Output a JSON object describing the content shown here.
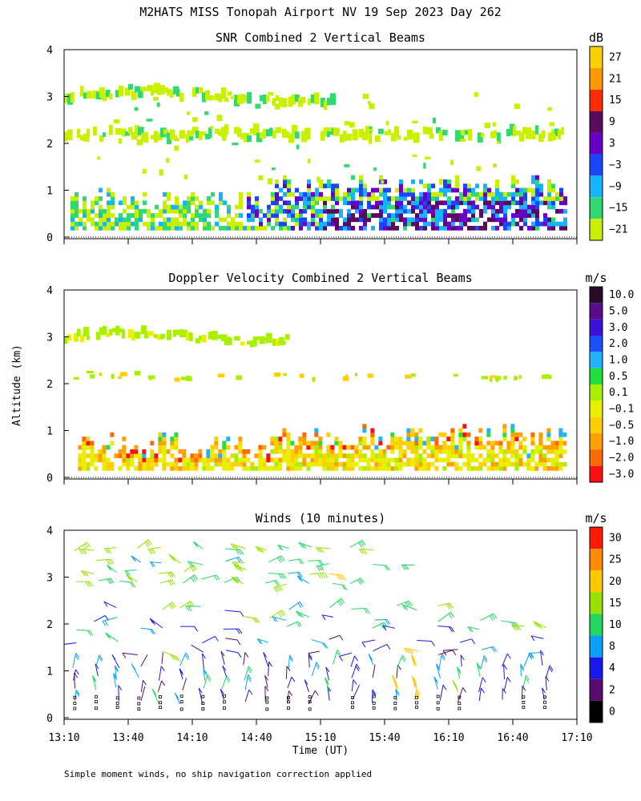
{
  "figure": {
    "title": "M2HATS MISS Tonopah Airport NV  19 Sep 2023 Day 262",
    "ylabel": "Altitude (km)",
    "xlabel": "Time (UT)",
    "footnote": "Simple moment winds, no ship navigation correction applied"
  },
  "chart_data": [
    {
      "type": "heatmap",
      "title": "SNR Combined 2 Vertical Beams",
      "ylabel": "Altitude (km)",
      "ylim": [
        0,
        4
      ],
      "yticks": [
        "0",
        "1",
        "2",
        "3",
        "4"
      ],
      "colorbar_unit": "dB",
      "colorbar": {
        "labels": [
          "27",
          "21",
          "15",
          "9",
          "3",
          "−3",
          "−9",
          "−15",
          "−21"
        ],
        "colors": [
          "#ffd000",
          "#ff9900",
          "#ff2a00",
          "#5a0a5a",
          "#6a00c8",
          "#1a46ff",
          "#14b4ff",
          "#32d870",
          "#c8f000"
        ]
      },
      "features": [
        {
          "name": "elevated layer",
          "altitude_km": 3.0,
          "time_range": [
            "13:10",
            "15:15"
          ],
          "snr_db": -18
        },
        {
          "name": "elevated layer",
          "altitude_km": 2.2,
          "time_range": [
            "13:10",
            "17:05"
          ],
          "snr_db": -20
        },
        {
          "name": "boundary layer",
          "altitude_km_range": [
            0.15,
            1.0
          ],
          "time_range": [
            "13:10",
            "17:05"
          ],
          "snr_db_range": [
            -21,
            6
          ]
        }
      ]
    },
    {
      "type": "heatmap",
      "title": "Doppler Velocity Combined 2 Vertical Beams",
      "ylabel": "Altitude (km)",
      "ylim": [
        0,
        4
      ],
      "yticks": [
        "0",
        "1",
        "2",
        "3",
        "4"
      ],
      "colorbar_unit": "m/s",
      "colorbar": {
        "labels": [
          "10.0",
          "5.0",
          "3.0",
          "2.0",
          "1.0",
          "0.5",
          "0.1",
          "−0.1",
          "−0.5",
          "−1.0",
          "−2.0",
          "−3.0"
        ],
        "colors": [
          "#2a0a2a",
          "#5a0a8a",
          "#3a10d8",
          "#1a50ff",
          "#20b4ff",
          "#20e040",
          "#a8f000",
          "#e8f000",
          "#ffd000",
          "#ffa000",
          "#ff6a00",
          "#ff1010"
        ]
      },
      "features": [
        {
          "name": "elevated layer",
          "altitude_km": 3.0,
          "time_range": [
            "13:10",
            "14:55"
          ],
          "velocity_ms": 0.1
        },
        {
          "name": "boundary layer",
          "altitude_km_range": [
            0.15,
            1.0
          ],
          "time_range": [
            "13:15",
            "17:05"
          ],
          "velocity_ms_range": [
            -2.0,
            0.1
          ]
        }
      ]
    },
    {
      "type": "scatter",
      "title": "Winds (10 minutes)",
      "ylabel": "Altitude (km)",
      "xlabel": "Time (UT)",
      "ylim": [
        0,
        4
      ],
      "yticks": [
        "0",
        "1",
        "2",
        "3",
        "4"
      ],
      "xticks": [
        "13:10",
        "13:40",
        "14:10",
        "14:40",
        "15:10",
        "15:40",
        "16:10",
        "16:40",
        "17:10"
      ],
      "colorbar_unit": "m/s",
      "colorbar": {
        "labels": [
          "30",
          "25",
          "20",
          "15",
          "10",
          "8",
          "4",
          "2",
          "0"
        ],
        "colors": [
          "#ff1a00",
          "#ff8a00",
          "#ffc800",
          "#98e000",
          "#20d860",
          "#0aa0ff",
          "#1818e8",
          "#5a0a70",
          "#000000"
        ]
      },
      "barb_levels_km": [
        0.35,
        0.6,
        0.85,
        1.1,
        1.4,
        1.65,
        1.9,
        2.1,
        2.35,
        2.9,
        3.1,
        3.3,
        3.6
      ],
      "wind_speed_ms_range": [
        0,
        30
      ]
    }
  ]
}
